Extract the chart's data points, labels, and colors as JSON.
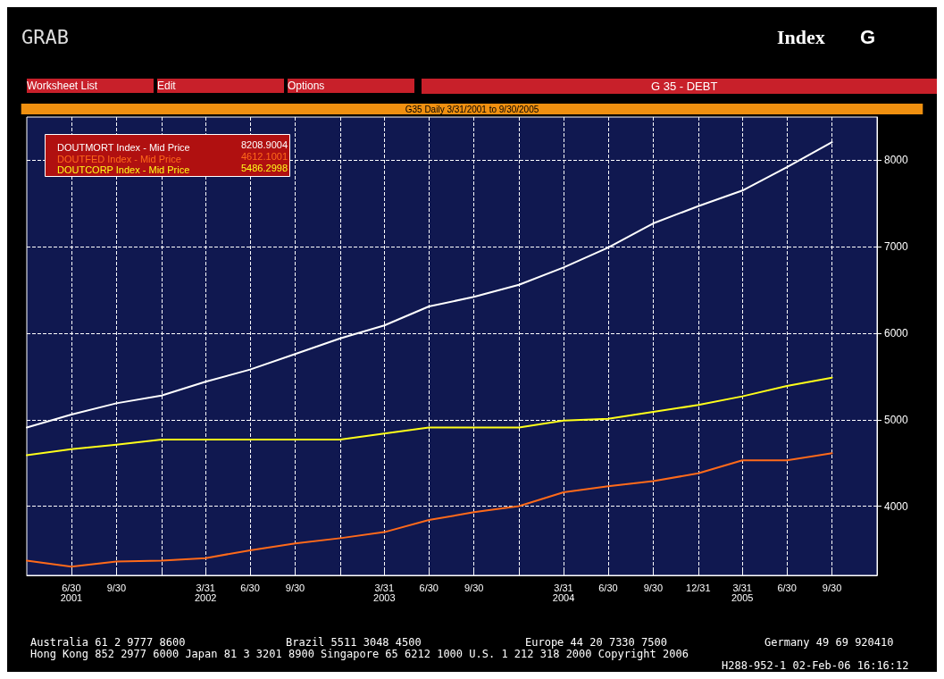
{
  "chart_data": {
    "type": "line",
    "title": "G 35 - DEBT",
    "subtitle": "G35 Daily 3/31/2001 to 9/30/2005",
    "x": [
      "2001-03-31",
      "2001-06-30",
      "2001-09-30",
      "2001-12-31",
      "2002-03-31",
      "2002-06-30",
      "2002-09-30",
      "2002-12-31",
      "2003-03-31",
      "2003-06-30",
      "2003-09-30",
      "2003-12-31",
      "2004-03-31",
      "2004-06-30",
      "2004-09-30",
      "2004-12-31",
      "2005-03-31",
      "2005-06-30",
      "2005-09-30"
    ],
    "series": [
      {
        "name": "DOUTMORT Index - Mid Price",
        "color": "#ffffff",
        "values": [
          4910,
          5060,
          5190,
          5280,
          5440,
          5580,
          5760,
          5940,
          6090,
          6310,
          6420,
          6560,
          6760,
          6990,
          7270,
          7470,
          7650,
          7920,
          8209
        ]
      },
      {
        "name": "DOUTFED Index - Mid Price",
        "color": "#ff6a1a",
        "values": [
          3370,
          3300,
          3360,
          3370,
          3400,
          3490,
          3570,
          3630,
          3700,
          3840,
          3930,
          4000,
          4160,
          4230,
          4290,
          4380,
          4530,
          4530,
          4612
        ]
      },
      {
        "name": "DOUTCORP Index - Mid Price",
        "color": "#ffff1a",
        "values": [
          4590,
          4660,
          4710,
          4770,
          4770,
          4770,
          4770,
          4770,
          4840,
          4910,
          4910,
          4910,
          4990,
          5010,
          5090,
          5170,
          5270,
          5390,
          5486
        ]
      }
    ],
    "xlim": [
      "2001-03-31",
      "2005-12-31"
    ],
    "xticks": [
      {
        "value": "2001-06-30",
        "label": "6/30\n2001"
      },
      {
        "value": "2001-09-30",
        "label": "9/30"
      },
      {
        "value": "2001-12-31",
        "label": null
      },
      {
        "value": "2002-03-31",
        "label": "3/31\n2002"
      },
      {
        "value": "2002-06-30",
        "label": "6/30"
      },
      {
        "value": "2002-09-30",
        "label": "9/30"
      },
      {
        "value": "2002-12-31",
        "label": null
      },
      {
        "value": "2003-03-31",
        "label": "3/31\n2003"
      },
      {
        "value": "2003-06-30",
        "label": "6/30"
      },
      {
        "value": "2003-09-30",
        "label": "9/30"
      },
      {
        "value": "2003-12-31",
        "label": null
      },
      {
        "value": "2004-03-31",
        "label": "3/31\n2004"
      },
      {
        "value": "2004-06-30",
        "label": "6/30"
      },
      {
        "value": "2004-09-30",
        "label": "9/30"
      },
      {
        "value": "2004-12-31",
        "label": "12/31"
      },
      {
        "value": "2005-03-31",
        "label": "3/31\n2005"
      },
      {
        "value": "2005-06-30",
        "label": "6/30"
      },
      {
        "value": "2005-09-30",
        "label": "9/30"
      }
    ],
    "ylim": [
      3200,
      8500
    ],
    "yticks": [
      4000,
      5000,
      6000,
      7000,
      8000
    ],
    "grid": true,
    "legend": "top left",
    "marker": "none",
    "line_style": "solid",
    "annotations": [
      "GRAB",
      "Index",
      "G",
      "Worksheet List",
      "Edit",
      "Options",
      "Australia 61 2 9777 8600",
      "Brazil 5511 3048 4500",
      "Europe 44 20 7330 7500",
      "Germany 49 69 920410",
      "Hong Kong 852 2977 6000 Japan 81 3 3201 8900 Singapore 65 6212 1000 U.S. 1 212 318 2000 Copyright 2006",
      "H288-952-1 02-Feb-06 16:16:12",
      "8208.9004",
      "4612.1001",
      "5486.2998"
    ]
  }
}
